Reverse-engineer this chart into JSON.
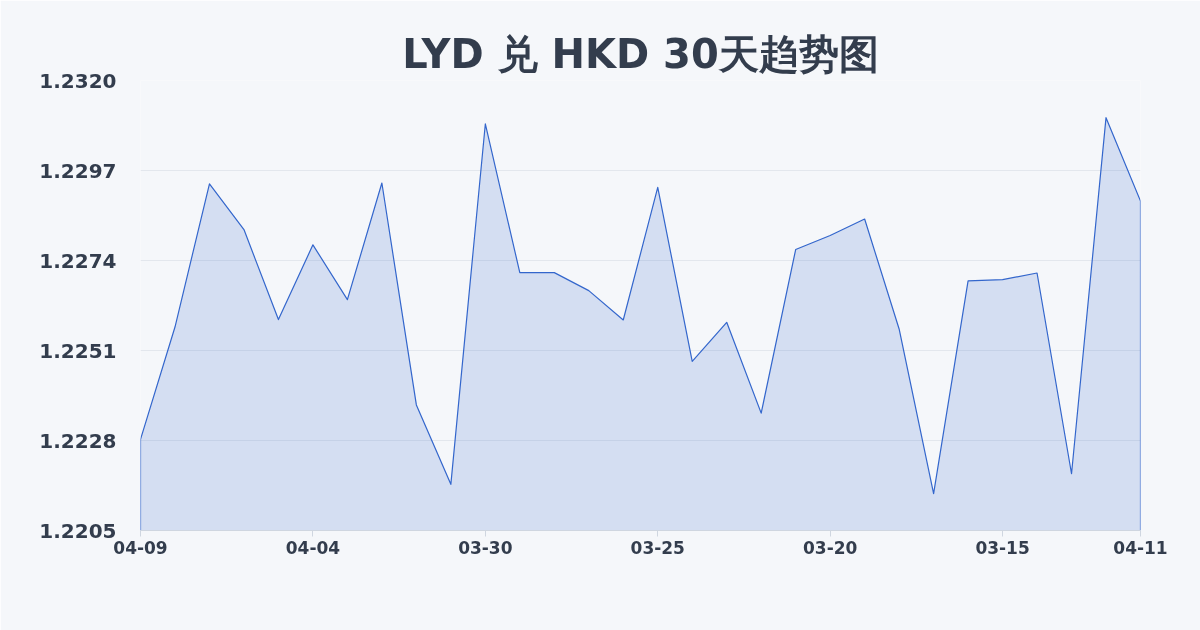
{
  "chart_data": {
    "type": "area",
    "title": "LYD 兑 HKD 30天趋势图",
    "categories": [
      "04-09",
      null,
      null,
      null,
      null,
      "04-04",
      null,
      null,
      null,
      null,
      "03-30",
      null,
      null,
      null,
      null,
      "03-25",
      null,
      null,
      null,
      null,
      "03-20",
      null,
      null,
      null,
      null,
      "03-15",
      null,
      null,
      null,
      "04-11"
    ],
    "series": [
      {
        "color": "#3366cc",
        "values": [
          1.22283,
          1.2257,
          1.22936,
          1.22819,
          1.22589,
          1.2278,
          1.2264,
          1.22938,
          1.22371,
          1.22168,
          1.23089,
          1.22709,
          1.22709,
          1.22663,
          1.22588,
          1.22927,
          1.22482,
          1.22582,
          1.2235,
          1.22768,
          1.22804,
          1.22846,
          1.22565,
          1.22144,
          1.22688,
          1.22691,
          1.22708,
          1.22195,
          1.23105,
          1.22892
        ]
      }
    ],
    "ylim": [
      1.2205,
      1.232
    ],
    "yticks": [
      1.2205,
      1.2228,
      1.2251,
      1.2274,
      1.2297,
      {
        "value": 1.232,
        "label": "1.2320"
      }
    ],
    "grid": "y"
  }
}
